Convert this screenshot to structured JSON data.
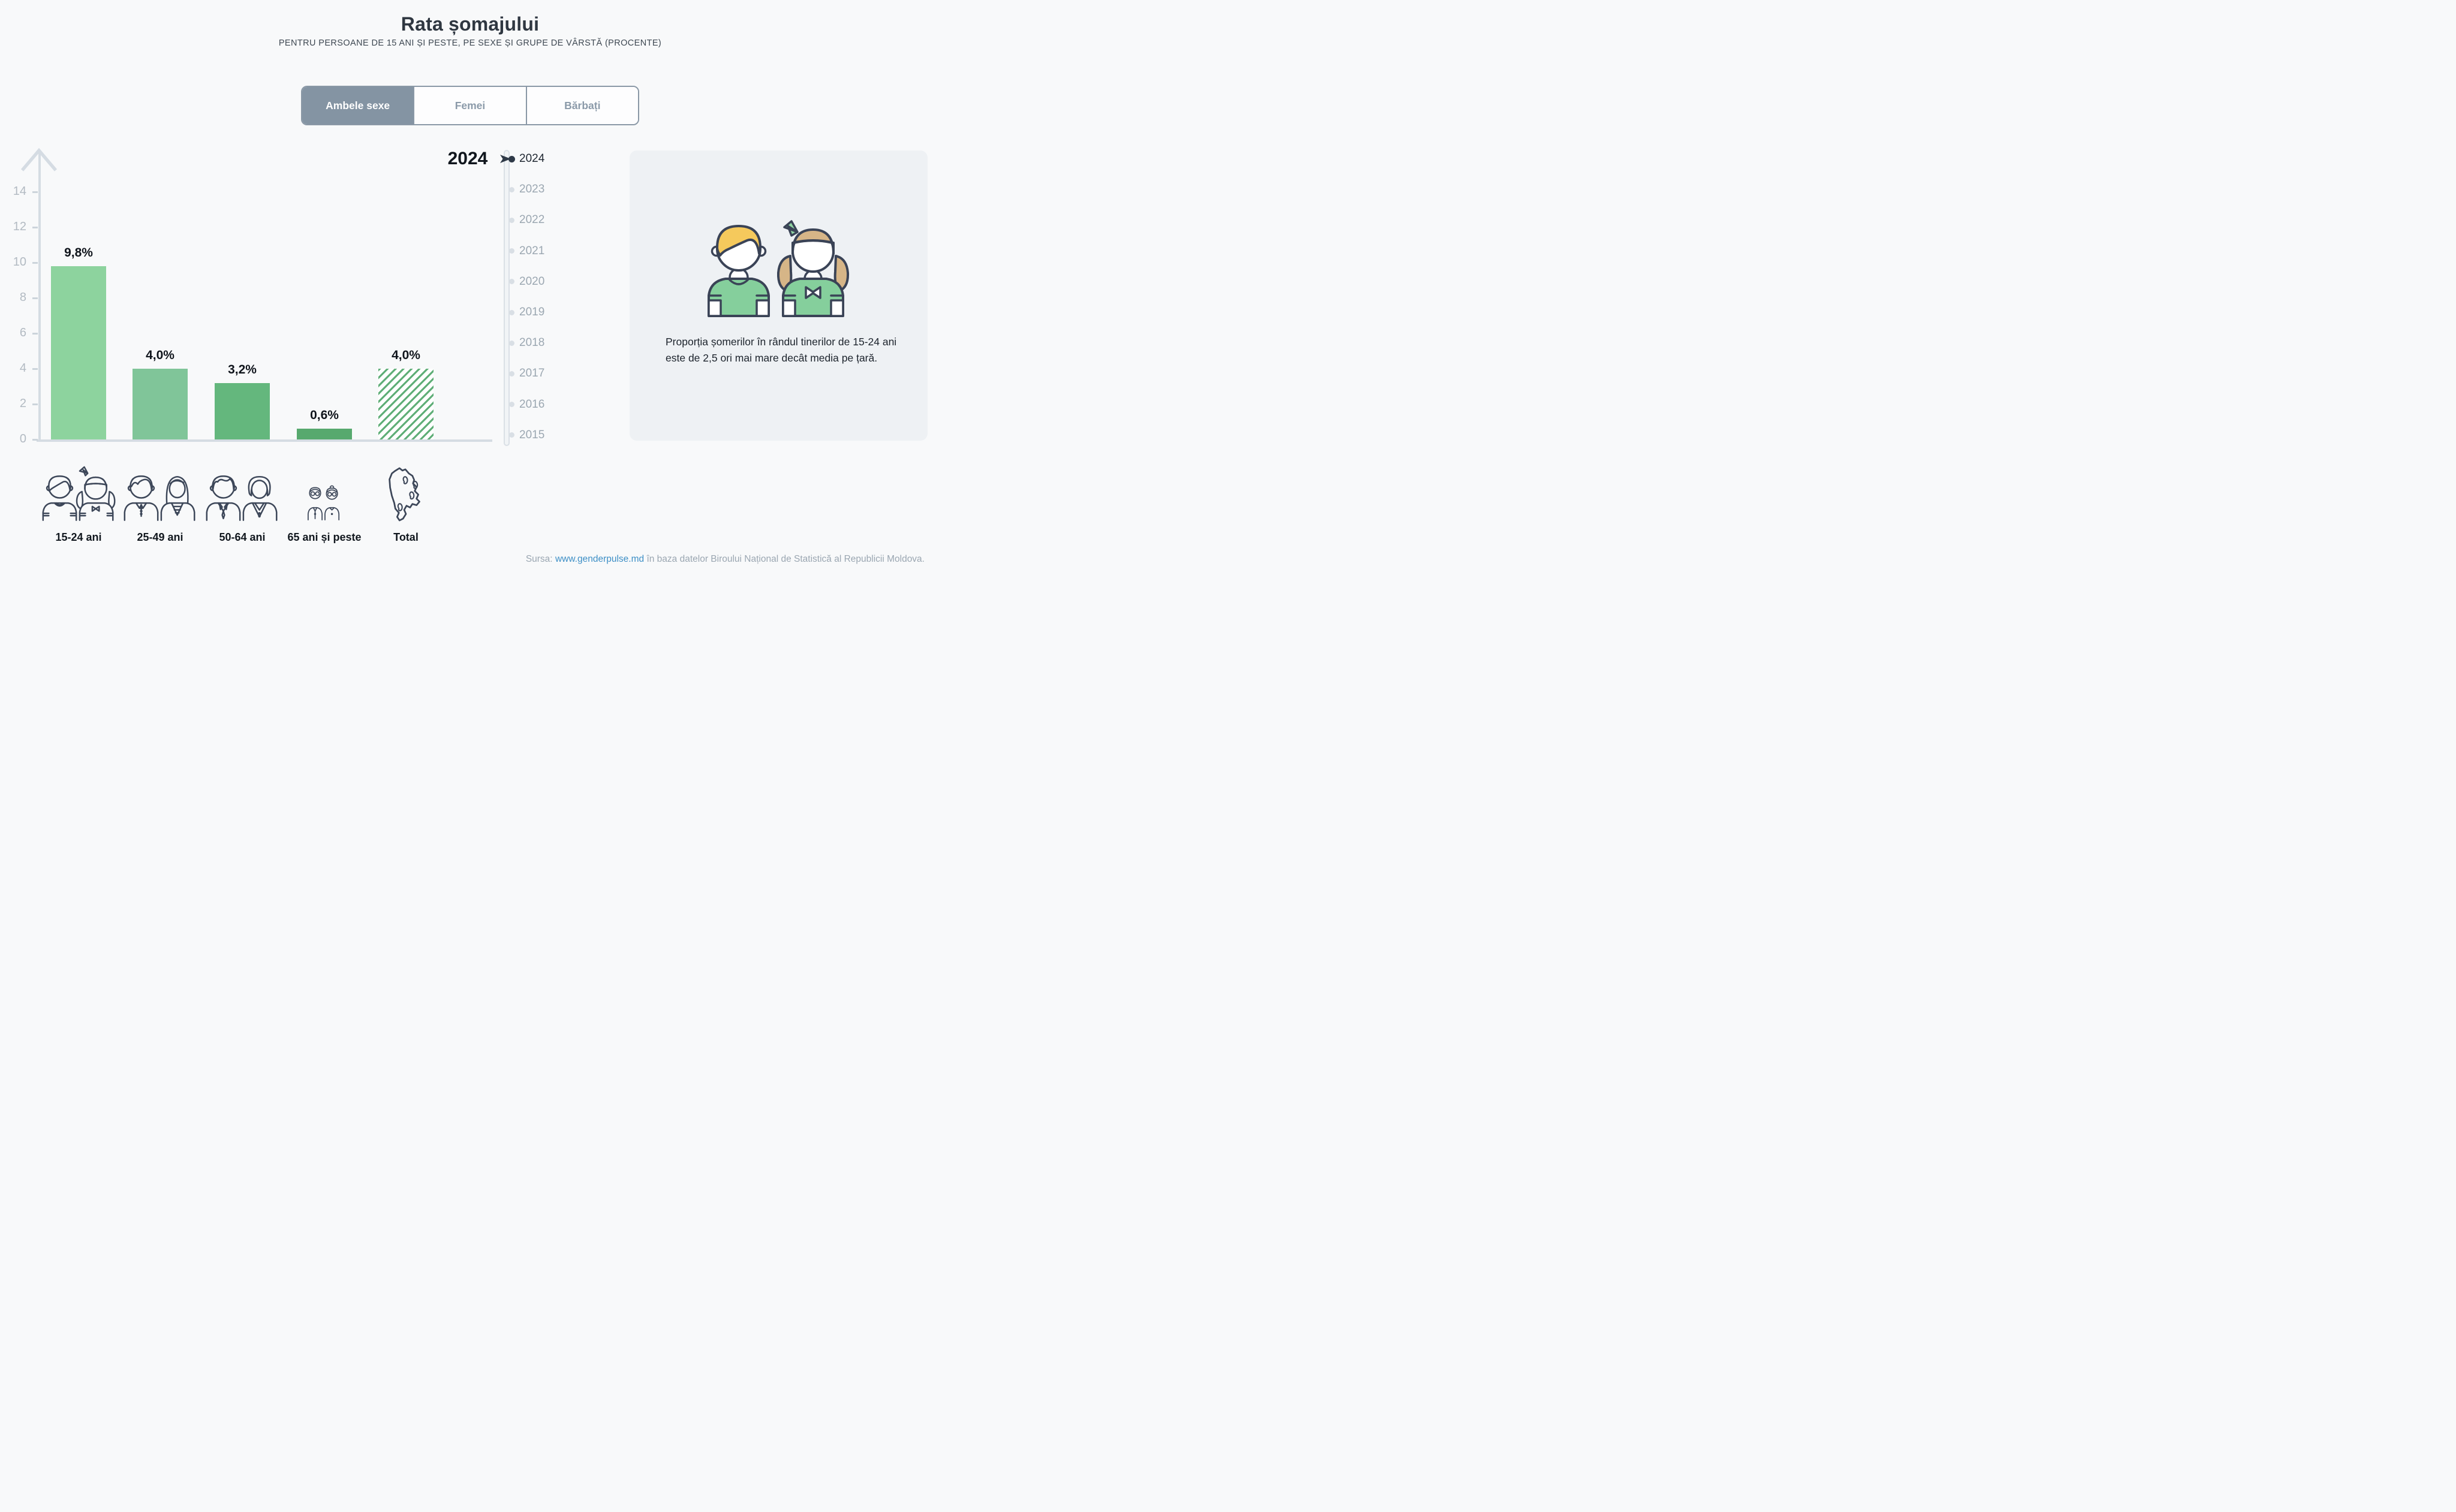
{
  "title": "Rata șomajului",
  "subtitle": "PENTRU PERSOANE DE 15 ANI ȘI PESTE, PE SEXE ȘI GRUPE DE VÂRSTĂ (PROCENTE)",
  "tabs": [
    {
      "label": "Ambele sexe",
      "active": true
    },
    {
      "label": "Femei",
      "active": false
    },
    {
      "label": "Bărbați",
      "active": false
    }
  ],
  "chart_data": {
    "type": "bar",
    "title": "Rata șomajului",
    "categories": [
      "15-24 ani",
      "25-49 ani",
      "50-64 ani",
      "65 ani și peste",
      "Total"
    ],
    "values": [
      9.8,
      4.0,
      3.2,
      0.6,
      4.0
    ],
    "value_labels": [
      "9,8%",
      "4,0%",
      "3,2%",
      "0,6%",
      "4,0%"
    ],
    "y_ticks": [
      0,
      2,
      4,
      6,
      8,
      10,
      12,
      14
    ],
    "ylim": [
      0,
      15
    ],
    "xlabel": "",
    "ylabel": "",
    "grid": false,
    "legend_position": "none",
    "hatched": [
      false,
      false,
      false,
      false,
      true
    ]
  },
  "big_year": "2024",
  "timeline": {
    "selected": "2024",
    "years": [
      "2024",
      "2023",
      "2022",
      "2021",
      "2020",
      "2019",
      "2018",
      "2017",
      "2016",
      "2015"
    ]
  },
  "panel": {
    "text": "Proporția șomerilor în rândul tinerilor de 15-24 ani este de 2,5 ori mai mare decât media pe țară."
  },
  "source": {
    "prefix": "Sursa:",
    "link": "www.genderpulse.md",
    "suffix": "în baza datelor Biroului Național de Statistică al Republicii Moldova."
  },
  "colors": {
    "bar_colors": [
      "#8dd39e",
      "#80c599",
      "#64b77d",
      "#57a96e"
    ],
    "hatch_green": "#5fae77",
    "hatch_bg": "#ffffff",
    "accent_dark": "#2e3947",
    "axis_gray": "#d5dce3"
  }
}
